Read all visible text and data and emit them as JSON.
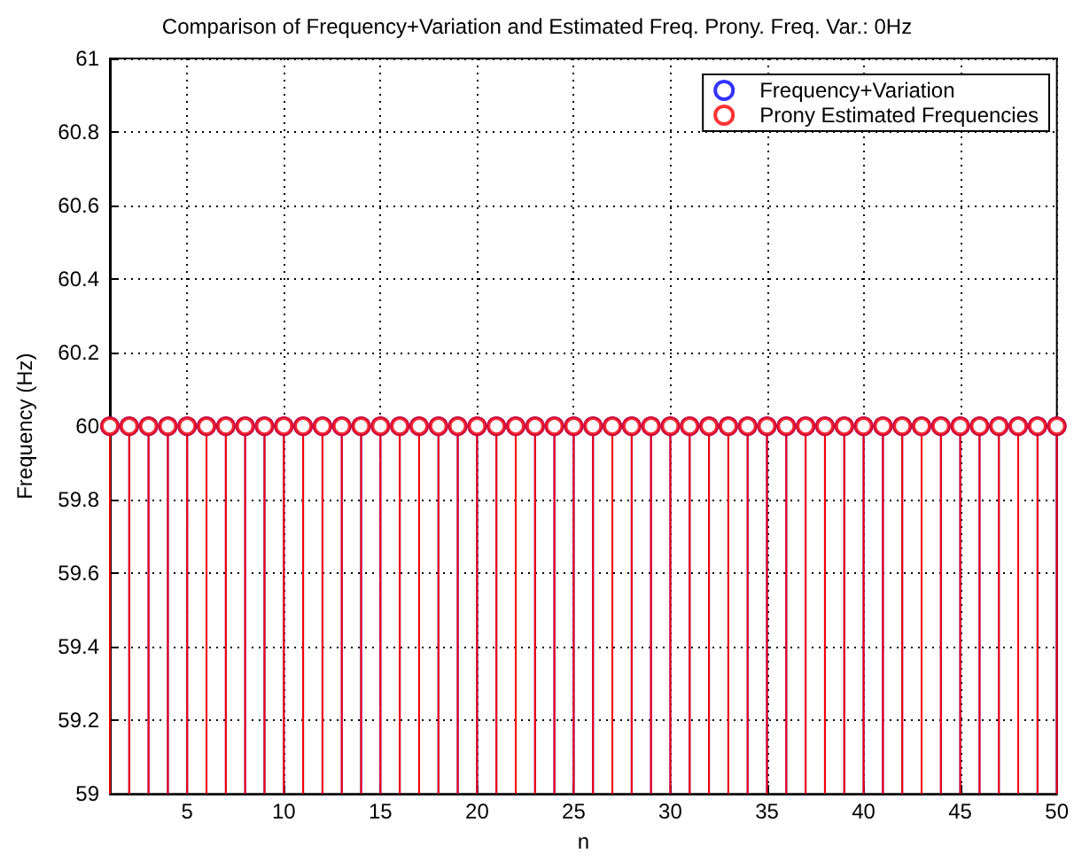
{
  "chart_data": {
    "type": "lollipop",
    "title": "Comparison of Frequency+Variation and Estimated Freq. Prony. Freq. Var.: 0Hz",
    "xlabel": "n",
    "ylabel": "Frequency (Hz)",
    "x": [
      1,
      2,
      3,
      4,
      5,
      6,
      7,
      8,
      9,
      10,
      11,
      12,
      13,
      14,
      15,
      16,
      17,
      18,
      19,
      20,
      21,
      22,
      23,
      24,
      25,
      26,
      27,
      28,
      29,
      30,
      31,
      32,
      33,
      34,
      35,
      36,
      37,
      38,
      39,
      40,
      41,
      42,
      43,
      44,
      45,
      46,
      47,
      48,
      49,
      50
    ],
    "series": [
      {
        "name": "Frequency+Variation",
        "color": "#0000ff",
        "values": [
          60,
          60,
          60,
          60,
          60,
          60,
          60,
          60,
          60,
          60,
          60,
          60,
          60,
          60,
          60,
          60,
          60,
          60,
          60,
          60,
          60,
          60,
          60,
          60,
          60,
          60,
          60,
          60,
          60,
          60,
          60,
          60,
          60,
          60,
          60,
          60,
          60,
          60,
          60,
          60,
          60,
          60,
          60,
          60,
          60,
          60,
          60,
          60,
          60,
          60
        ]
      },
      {
        "name": "Prony Estimated Frequencies",
        "color": "#ff0000",
        "values": [
          60,
          60,
          60,
          60,
          60,
          60,
          60,
          60,
          60,
          60,
          60,
          60,
          60,
          60,
          60,
          60,
          60,
          60,
          60,
          60,
          60,
          60,
          60,
          60,
          60,
          60,
          60,
          60,
          60,
          60,
          60,
          60,
          60,
          60,
          60,
          60,
          60,
          60,
          60,
          60,
          60,
          60,
          60,
          60,
          60,
          60,
          60,
          60,
          60,
          60
        ]
      }
    ],
    "xlim": [
      1,
      50
    ],
    "xticks": [
      5,
      10,
      15,
      20,
      25,
      30,
      35,
      40,
      45,
      50
    ],
    "ylim": [
      59,
      61
    ],
    "yticks": [
      59,
      59.2,
      59.4,
      59.6,
      59.8,
      60,
      60.2,
      60.4,
      60.6,
      60.8,
      61
    ],
    "grid": true,
    "legend": "top right",
    "marker": "circle",
    "line_style": "solid"
  }
}
